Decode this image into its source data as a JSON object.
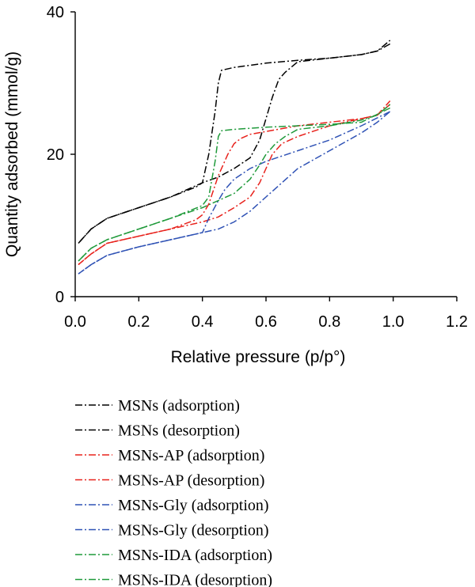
{
  "chart_data": {
    "type": "line",
    "xlabel": "Relative pressure (p/p°)",
    "ylabel": "Quantity adsorbed (mmol/g)",
    "xlim": [
      0,
      1.2
    ],
    "ylim": [
      0,
      40
    ],
    "xticks": [
      "0.0",
      "0.2",
      "0.4",
      "0.6",
      "0.8",
      "1.0",
      "1.2"
    ],
    "yticks": [
      "0",
      "20",
      "40"
    ],
    "legend_placement": "below",
    "series": [
      {
        "name": "MSNs (adsorption)",
        "color": "#000000",
        "x": [
          0.01,
          0.05,
          0.1,
          0.2,
          0.3,
          0.4,
          0.45,
          0.5,
          0.55,
          0.58,
          0.6,
          0.62,
          0.64,
          0.66,
          0.7,
          0.8,
          0.9,
          0.95,
          0.99
        ],
        "y": [
          7.5,
          9.5,
          11,
          12.5,
          14,
          16,
          16.8,
          18,
          19.5,
          22,
          25,
          28,
          30.5,
          31.5,
          33,
          33.5,
          34,
          34.5,
          36
        ]
      },
      {
        "name": "MSNs (desorption)",
        "color": "#000000",
        "x": [
          0.99,
          0.95,
          0.9,
          0.8,
          0.7,
          0.6,
          0.5,
          0.46,
          0.45,
          0.44,
          0.42,
          0.4,
          0.38,
          0.3,
          0.2,
          0.1,
          0.05,
          0.01
        ],
        "y": [
          35.5,
          34.5,
          34,
          33.5,
          33.2,
          32.8,
          32.2,
          31.8,
          30,
          26,
          20,
          16,
          15.4,
          14,
          12.5,
          11,
          9.5,
          7.5
        ]
      },
      {
        "name": "MSNs-AP (adsorption)",
        "color": "#e8221c",
        "x": [
          0.01,
          0.05,
          0.1,
          0.2,
          0.3,
          0.4,
          0.45,
          0.5,
          0.55,
          0.58,
          0.6,
          0.62,
          0.65,
          0.7,
          0.8,
          0.9,
          0.95,
          0.99
        ],
        "y": [
          4.5,
          6,
          7.5,
          8.5,
          9.5,
          10.5,
          11.2,
          12.5,
          14,
          16,
          18,
          20,
          21.5,
          22.5,
          24,
          25,
          25.5,
          27.5
        ]
      },
      {
        "name": "MSNs-AP (desorption)",
        "color": "#e8221c",
        "x": [
          0.99,
          0.95,
          0.9,
          0.8,
          0.7,
          0.6,
          0.55,
          0.52,
          0.5,
          0.48,
          0.45,
          0.42,
          0.4,
          0.38,
          0.3,
          0.2,
          0.1,
          0.05,
          0.01
        ],
        "y": [
          27,
          25.5,
          25,
          24.5,
          24,
          23.2,
          22.8,
          22.2,
          21.5,
          20,
          17,
          13,
          11.5,
          10.8,
          9.5,
          8.5,
          7.5,
          6,
          4.5
        ]
      },
      {
        "name": "MSNs-Gly (adsorption)",
        "color": "#2f52b5",
        "x": [
          0.01,
          0.05,
          0.1,
          0.2,
          0.3,
          0.4,
          0.45,
          0.5,
          0.55,
          0.6,
          0.65,
          0.7,
          0.8,
          0.9,
          0.95,
          0.99
        ],
        "y": [
          3.2,
          4.5,
          5.8,
          7,
          8,
          9,
          9.5,
          10.5,
          12,
          14,
          16,
          18,
          20.5,
          23,
          24.5,
          26
        ]
      },
      {
        "name": "MSNs-Gly (desorption)",
        "color": "#2f52b5",
        "x": [
          0.99,
          0.9,
          0.8,
          0.7,
          0.6,
          0.55,
          0.5,
          0.47,
          0.45,
          0.42,
          0.4,
          0.3,
          0.2,
          0.1,
          0.05,
          0.01
        ],
        "y": [
          26,
          24,
          22,
          20.5,
          19,
          18,
          16.5,
          15,
          13.5,
          11,
          9,
          8,
          7,
          5.8,
          4.5,
          3.2
        ]
      },
      {
        "name": "MSNs-IDA (adsorption)",
        "color": "#1f9a3a",
        "x": [
          0.01,
          0.05,
          0.1,
          0.2,
          0.3,
          0.4,
          0.45,
          0.5,
          0.55,
          0.58,
          0.6,
          0.63,
          0.66,
          0.7,
          0.8,
          0.9,
          0.95,
          0.99
        ],
        "y": [
          5,
          6.8,
          8,
          9.5,
          11,
          12.5,
          13.5,
          14.5,
          16.5,
          18.5,
          20,
          21.5,
          22.5,
          23.5,
          24,
          24.8,
          25.5,
          27
        ]
      },
      {
        "name": "MSNs-IDA (desorption)",
        "color": "#1f9a3a",
        "x": [
          0.99,
          0.9,
          0.8,
          0.7,
          0.6,
          0.5,
          0.46,
          0.45,
          0.44,
          0.42,
          0.4,
          0.3,
          0.2,
          0.1,
          0.05,
          0.01
        ],
        "y": [
          26.5,
          24.5,
          24.2,
          24,
          23.8,
          23.5,
          23.3,
          22.5,
          19,
          14,
          12.8,
          11,
          9.5,
          8,
          6.8,
          5
        ]
      }
    ]
  }
}
